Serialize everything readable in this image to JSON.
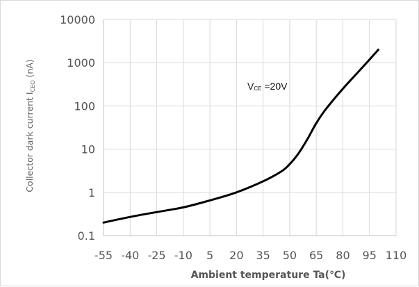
{
  "chart_data": {
    "type": "line",
    "title": "",
    "xlabel": "Ambient temperature Ta(℃)",
    "ylabel": {
      "main": "Collector dark current I",
      "sub": "CEO",
      "unit": " (nA)"
    },
    "annotation": {
      "main": "V",
      "sub": "CE",
      "rest": " =20V"
    },
    "x_ticks": [
      "-55",
      "-40",
      "-25",
      "-10",
      "5",
      "20",
      "35",
      "50",
      "65",
      "80",
      "95",
      "110"
    ],
    "y_ticks": [
      "0.1",
      "1",
      "10",
      "100",
      "1000",
      "10000"
    ],
    "xlim": [
      -55,
      110
    ],
    "ylim": [
      0.1,
      10000
    ],
    "y_scale": "log",
    "grid": true,
    "legend": "none",
    "colors": {
      "line": "#000000",
      "grid": "#d9d9d9",
      "axis": "#bfbfbf"
    },
    "series": [
      {
        "x": [
          -55,
          -40,
          -25,
          -10,
          5,
          20,
          35,
          45,
          50,
          55,
          60,
          65,
          70,
          80,
          90,
          100
        ],
        "y": [
          0.2,
          0.27,
          0.35,
          0.45,
          0.65,
          1.0,
          1.8,
          3.0,
          4.5,
          8.0,
          17,
          40,
          80,
          250,
          700,
          2000
        ]
      }
    ]
  }
}
